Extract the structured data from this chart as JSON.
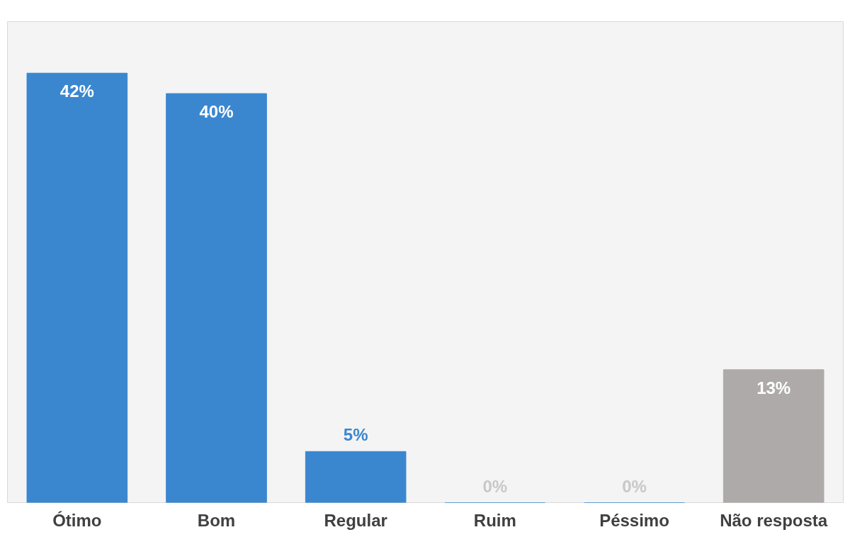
{
  "chart_data": {
    "type": "bar",
    "categories": [
      "Ótimo",
      "Bom",
      "Regular",
      "Ruim",
      "Péssimo",
      "Não resposta"
    ],
    "values": [
      42,
      40,
      5,
      0,
      0,
      13
    ],
    "colors": [
      "#3a87d0",
      "#3a87d0",
      "#3a87d0",
      "#3a87d0",
      "#3a87d0",
      "#aeaaaa"
    ],
    "value_labels": [
      "42%",
      "40%",
      "5%",
      "0%",
      "0%",
      "13%"
    ],
    "grid": false
  }
}
